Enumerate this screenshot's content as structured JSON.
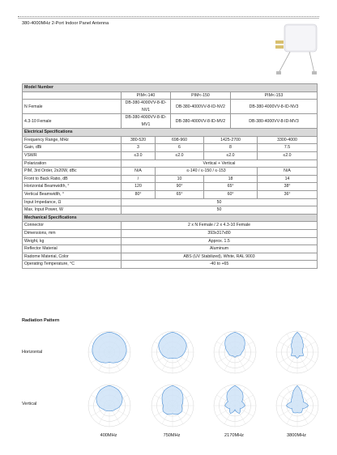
{
  "title": "380-4000MHz 2-Port Indoor Panel Antenna",
  "table": {
    "model": {
      "heading": "Model Number",
      "head_cells": [
        "PIM<-140",
        "PIM<-150",
        "PIM<-153"
      ],
      "rows": [
        {
          "label": "N Female",
          "cells": [
            "DB-380-4000VV-8-ID-NV1",
            "DB-380-4000VV-8-ID-NV2",
            "DB-380-4000VV-8-ID-NV3"
          ]
        },
        {
          "label": "4.3-10 Female",
          "cells": [
            "DB-380-4000VV-8-ID-MV1",
            "DB-380-4000VV-8-ID-MV2",
            "DB-380-4000VV-8-ID-MV3"
          ]
        }
      ]
    },
    "electrical": {
      "heading": "Electrical Specifications",
      "freq": {
        "label": "Frequency Range, MHz",
        "cells": [
          "380-520",
          "698-960",
          "1425-2700",
          "3300-4000"
        ]
      },
      "gain": {
        "label": "Gain, dBi",
        "cells": [
          "3",
          "6",
          "8",
          "7.5"
        ]
      },
      "vswr": {
        "label": "VSWR",
        "cells": [
          "≤3.0",
          "≤2.0",
          "≤2.0",
          "≤2.0"
        ]
      },
      "polarization": {
        "label": "Polarization",
        "value": "Vertical + Vertical"
      },
      "pim": {
        "label": "PIM, 3rd Order, 2x20W, dBc",
        "first": "N/A",
        "middle": "≤-140 / ≤-150 / ≤-153",
        "last": "N/A"
      },
      "ftb": {
        "label": "Front to Back Ratio, dB",
        "cells": [
          "/",
          "10",
          "18",
          "14"
        ]
      },
      "hbw": {
        "label": "Horizontal Beamwidth, °",
        "cells": [
          "120",
          "90°",
          "65°",
          "38°"
        ]
      },
      "vbw": {
        "label": "Vertical Beamwidth, °",
        "cells": [
          "80°",
          "65°",
          "60°",
          "36°"
        ]
      },
      "impedance": {
        "label": "Input Impedance, Ω",
        "value": "50"
      },
      "power": {
        "label": "Max. Input Power, W",
        "value": "50"
      }
    },
    "mechanical": {
      "heading": "Mechanical Specifications",
      "rows": [
        {
          "label": "Connector",
          "value": "2 x N Female / 2 x 4.3-10 Female"
        },
        {
          "label": "Dimensions, mm",
          "value": "393x317x80"
        },
        {
          "label": "Weight, kg",
          "value": "Approx. 1.5"
        },
        {
          "label": "Reflector Material",
          "value": "Aluminum"
        },
        {
          "label": "Radome Material, Color",
          "value": "ABS (UV Stabilized), White, RAL 9003"
        },
        {
          "label": "Operating Temperature, °C",
          "value": "-40 to +65"
        }
      ]
    }
  },
  "radiation": {
    "title": "Radiation Pattern",
    "rows": [
      "Horizontal",
      "Vertical"
    ],
    "frequencies": [
      "400MHz",
      "750MHz",
      "2170MHz",
      "3800MHz"
    ]
  },
  "colors": {
    "section_bg": "#d9d9d9",
    "pattern_fill": "#cfe3f7",
    "pattern_stroke": "#4a8fd6"
  }
}
